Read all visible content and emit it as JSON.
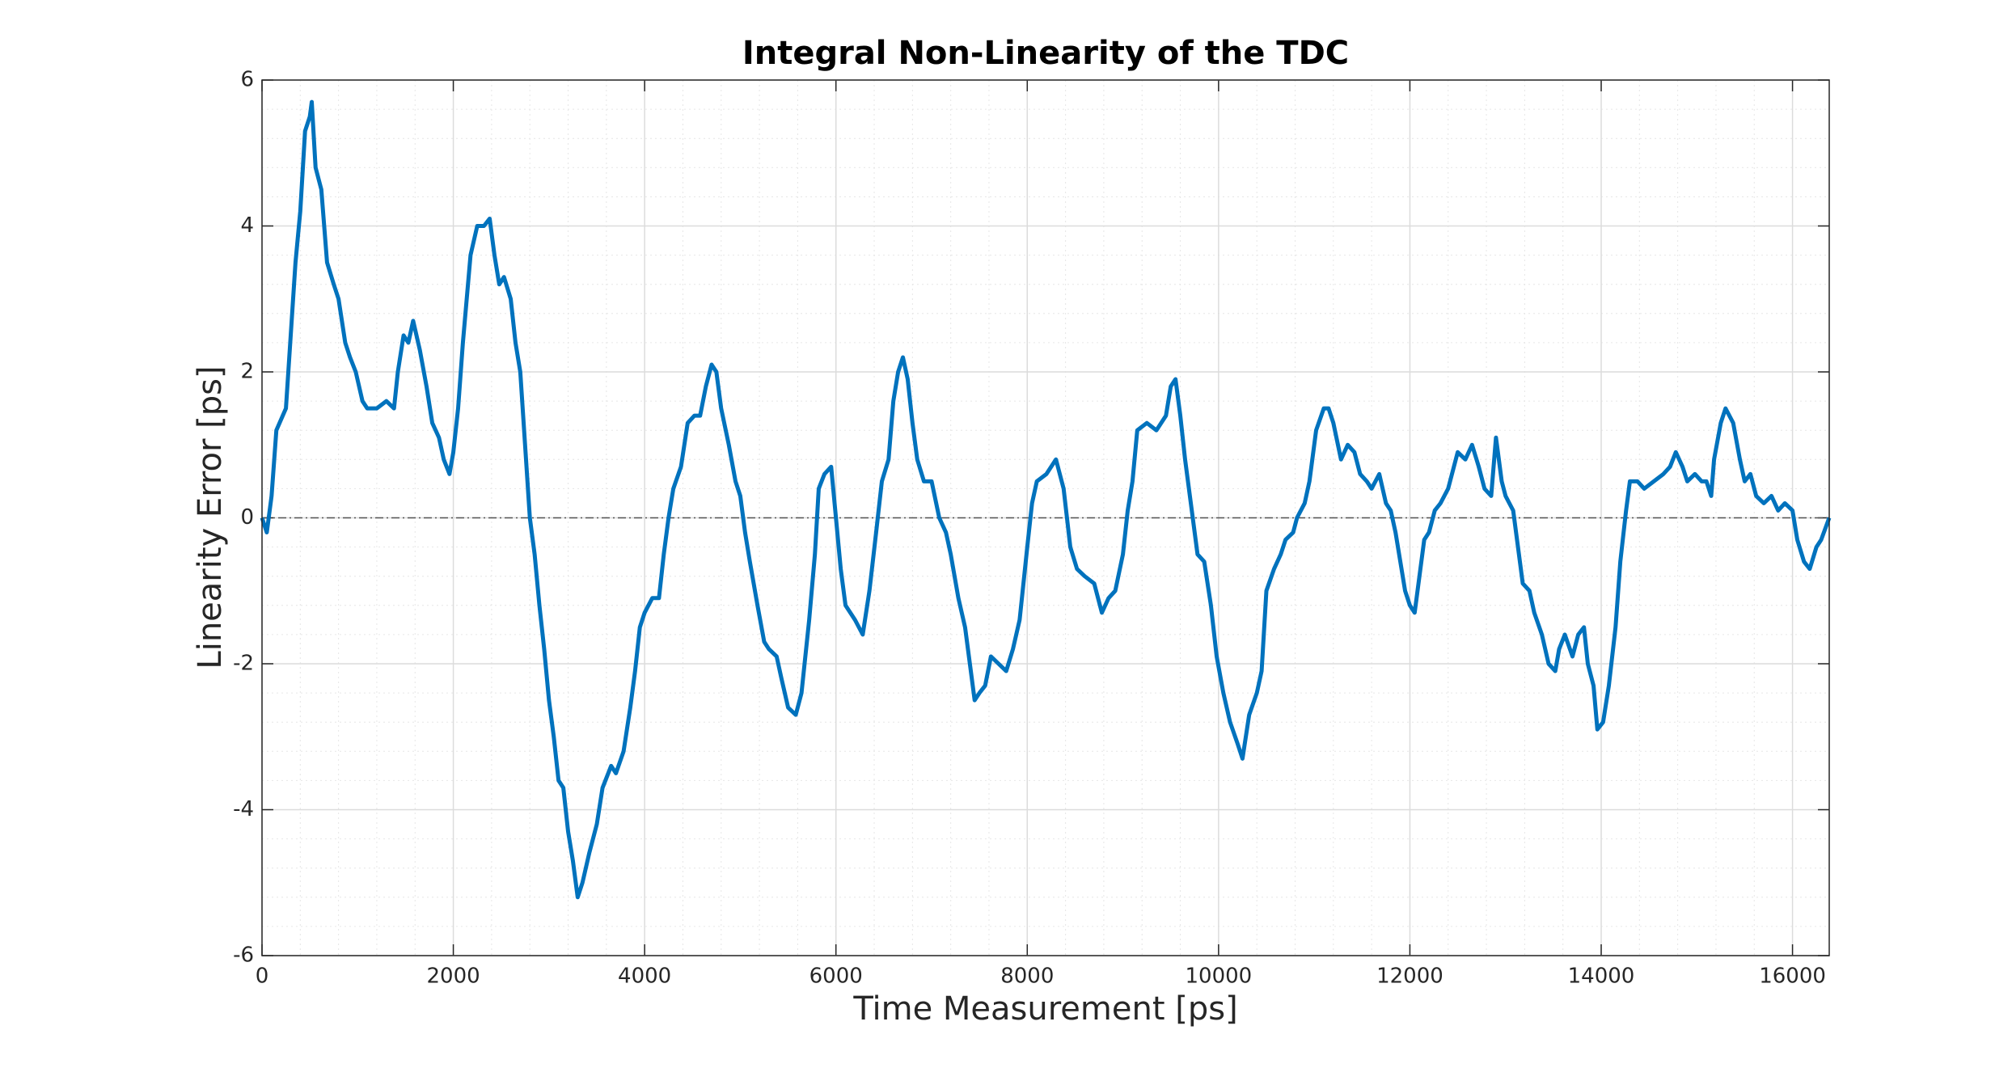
{
  "chart_data": {
    "type": "line",
    "title": "Integral Non-Linearity of the TDC",
    "x_label": "Time Measurement [ps]",
    "y_label": "Linearity Error [ps]",
    "xlim": [
      0,
      16384
    ],
    "ylim": [
      -6,
      6
    ],
    "xticks": [
      0,
      2000,
      4000,
      6000,
      8000,
      10000,
      12000,
      14000,
      16000
    ],
    "yticks": [
      -6,
      -4,
      -2,
      0,
      2,
      4,
      6
    ],
    "grid": true,
    "minor_grid": true,
    "reference_line": 0,
    "series": [
      {
        "color": "#0072bd",
        "x": [
          0,
          50,
          100,
          150,
          250,
          300,
          350,
          400,
          450,
          500,
          520,
          560,
          620,
          680,
          750,
          800,
          870,
          920,
          980,
          1050,
          1100,
          1200,
          1300,
          1380,
          1420,
          1480,
          1530,
          1580,
          1650,
          1720,
          1780,
          1850,
          1900,
          1960,
          2000,
          2050,
          2100,
          2180,
          2250,
          2320,
          2380,
          2430,
          2480,
          2530,
          2600,
          2650,
          2700,
          2750,
          2800,
          2850,
          2900,
          2950,
          3000,
          3050,
          3100,
          3150,
          3200,
          3250,
          3300,
          3350,
          3420,
          3500,
          3560,
          3650,
          3700,
          3780,
          3850,
          3900,
          3950,
          4000,
          4080,
          4150,
          4200,
          4250,
          4300,
          4380,
          4450,
          4520,
          4580,
          4640,
          4700,
          4750,
          4800,
          4880,
          4950,
          5000,
          5050,
          5100,
          5180,
          5250,
          5300,
          5380,
          5430,
          5500,
          5580,
          5640,
          5720,
          5780,
          5820,
          5880,
          5950,
          6000,
          6050,
          6100,
          6200,
          6280,
          6350,
          6420,
          6480,
          6550,
          6600,
          6650,
          6700,
          6750,
          6800,
          6850,
          6920,
          7000,
          7080,
          7150,
          7200,
          7280,
          7350,
          7400,
          7450,
          7500,
          7560,
          7620,
          7700,
          7780,
          7850,
          7920,
          8000,
          8050,
          8100,
          8200,
          8300,
          8380,
          8450,
          8520,
          8600,
          8700,
          8780,
          8850,
          8920,
          9000,
          9050,
          9100,
          9150,
          9250,
          9350,
          9450,
          9500,
          9550,
          9600,
          9650,
          9700,
          9780,
          9850,
          9920,
          9980,
          10050,
          10120,
          10200,
          10250,
          10320,
          10400,
          10450,
          10500,
          10580,
          10650,
          10700,
          10780,
          10820,
          10900,
          10950,
          11020,
          11100,
          11150,
          11200,
          11280,
          11350,
          11420,
          11480,
          11550,
          11600,
          11680,
          11750,
          11800,
          11850,
          11900,
          11950,
          12000,
          12050,
          12100,
          12150,
          12200,
          12260,
          12320,
          12400,
          12500,
          12580,
          12650,
          12720,
          12780,
          12850,
          12900,
          12960,
          13000,
          13080,
          13120,
          13180,
          13250,
          13300,
          13380,
          13450,
          13520,
          13560,
          13620,
          13700,
          13760,
          13820,
          13860,
          13920,
          13960,
          14020,
          14080,
          14150,
          14200,
          14260,
          14300,
          14380,
          14450,
          14550,
          14650,
          14720,
          14780,
          14850,
          14900,
          14980,
          15050,
          15100,
          15150,
          15180,
          15250,
          15300,
          15380,
          15450,
          15500,
          15560,
          15620,
          15700,
          15780,
          15850,
          15920,
          16000,
          16050,
          16120,
          16180,
          16250,
          16300,
          16384
        ],
        "values": [
          0,
          -0.2,
          0.3,
          1.2,
          1.5,
          2.5,
          3.5,
          4.2,
          5.3,
          5.5,
          5.7,
          4.8,
          4.5,
          3.5,
          3.2,
          3,
          2.4,
          2.2,
          2.0,
          1.6,
          1.5,
          1.5,
          1.6,
          1.5,
          2.0,
          2.5,
          2.4,
          2.7,
          2.3,
          1.8,
          1.3,
          1.1,
          0.8,
          0.6,
          0.9,
          1.5,
          2.4,
          3.6,
          4.0,
          4.0,
          4.1,
          3.6,
          3.2,
          3.3,
          3.0,
          2.4,
          2.0,
          1.0,
          0,
          -0.5,
          -1.2,
          -1.8,
          -2.5,
          -3.0,
          -3.6,
          -3.7,
          -4.3,
          -4.7,
          -5.2,
          -5.0,
          -4.6,
          -4.2,
          -3.7,
          -3.4,
          -3.5,
          -3.2,
          -2.6,
          -2.1,
          -1.5,
          -1.3,
          -1.1,
          -1.1,
          -0.5,
          0,
          0.4,
          0.7,
          1.3,
          1.4,
          1.4,
          1.8,
          2.1,
          2.0,
          1.5,
          1.0,
          0.5,
          0.3,
          -0.2,
          -0.6,
          -1.2,
          -1.7,
          -1.8,
          -1.9,
          -2.2,
          -2.6,
          -2.7,
          -2.4,
          -1.4,
          -0.5,
          0.4,
          0.6,
          0.7,
          0,
          -0.7,
          -1.2,
          -1.4,
          -1.6,
          -1.0,
          -0.2,
          0.5,
          0.8,
          1.6,
          2.0,
          2.2,
          1.9,
          1.3,
          0.8,
          0.5,
          0.5,
          0,
          -0.2,
          -0.5,
          -1.1,
          -1.5,
          -2.0,
          -2.5,
          -2.4,
          -2.3,
          -1.9,
          -2.0,
          -2.1,
          -1.8,
          -1.4,
          -0.4,
          0.2,
          0.5,
          0.6,
          0.8,
          0.4,
          -0.4,
          -0.7,
          -0.8,
          -0.9,
          -1.3,
          -1.1,
          -1.0,
          -0.5,
          0.1,
          0.5,
          1.2,
          1.3,
          1.2,
          1.4,
          1.8,
          1.9,
          1.4,
          0.8,
          0.3,
          -0.5,
          -0.6,
          -1.2,
          -1.9,
          -2.4,
          -2.8,
          -3.1,
          -3.3,
          -2.7,
          -2.4,
          -2.1,
          -1.0,
          -0.7,
          -0.5,
          -0.3,
          -0.2,
          0,
          0.2,
          0.5,
          1.2,
          1.5,
          1.5,
          1.3,
          0.8,
          1.0,
          0.9,
          0.6,
          0.5,
          0.4,
          0.6,
          0.2,
          0.1,
          -0.2,
          -0.6,
          -1.0,
          -1.2,
          -1.3,
          -0.8,
          -0.3,
          -0.2,
          0.1,
          0.2,
          0.4,
          0.9,
          0.8,
          1.0,
          0.7,
          0.4,
          0.3,
          1.1,
          0.5,
          0.3,
          0.1,
          -0.3,
          -0.9,
          -1.0,
          -1.3,
          -1.6,
          -2.0,
          -2.1,
          -1.8,
          -1.6,
          -1.9,
          -1.6,
          -1.5,
          -2.0,
          -2.3,
          -2.9,
          -2.8,
          -2.3,
          -1.5,
          -0.6,
          0.1,
          0.5,
          0.5,
          0.4,
          0.5,
          0.6,
          0.7,
          0.9,
          0.7,
          0.5,
          0.6,
          0.5,
          0.5,
          0.3,
          0.8,
          1.3,
          1.5,
          1.3,
          0.8,
          0.5,
          0.6,
          0.3,
          0.2,
          0.3,
          0.1,
          0.2,
          0.1,
          -0.3,
          -0.6,
          -0.7,
          -0.4,
          -0.3,
          0
        ]
      }
    ]
  }
}
